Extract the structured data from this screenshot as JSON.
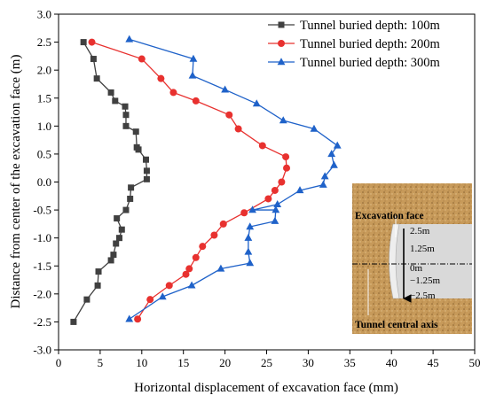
{
  "chart_data": {
    "type": "line",
    "title": "",
    "xlabel": "Horizontal displacement of excavation face (mm)",
    "ylabel": "Distance from center of the excavation face (m)",
    "xlim": [
      0,
      50
    ],
    "ylim": [
      -3.0,
      3.0
    ],
    "xticks": [
      "0",
      "5",
      "10",
      "15",
      "20",
      "25",
      "30",
      "35",
      "40",
      "45",
      "50"
    ],
    "yticks": [
      "3.0",
      "2.5",
      "2.0",
      "1.5",
      "1.0",
      "0.5",
      "0.0",
      "-0.5",
      "-1.0",
      "-1.5",
      "-2.0",
      "-2.5",
      "-3.0"
    ],
    "grid": false,
    "legend_position": "top-right",
    "series": [
      {
        "name": "Tunnel buried depth: 100m",
        "color": "#404040",
        "marker": "square",
        "points": [
          [
            3.0,
            2.5
          ],
          [
            4.2,
            2.2
          ],
          [
            4.6,
            1.85
          ],
          [
            6.3,
            1.6
          ],
          [
            6.8,
            1.45
          ],
          [
            8.0,
            1.35
          ],
          [
            8.1,
            1.2
          ],
          [
            8.1,
            1.0
          ],
          [
            9.3,
            0.9
          ],
          [
            9.4,
            0.62
          ],
          [
            9.6,
            0.58
          ],
          [
            10.5,
            0.4
          ],
          [
            10.6,
            0.2
          ],
          [
            10.6,
            0.05
          ],
          [
            8.7,
            -0.1
          ],
          [
            8.6,
            -0.3
          ],
          [
            8.1,
            -0.5
          ],
          [
            7.0,
            -0.65
          ],
          [
            7.6,
            -0.85
          ],
          [
            7.3,
            -1.0
          ],
          [
            6.9,
            -1.1
          ],
          [
            6.6,
            -1.3
          ],
          [
            6.3,
            -1.4
          ],
          [
            4.8,
            -1.6
          ],
          [
            4.7,
            -1.85
          ],
          [
            3.4,
            -2.1
          ],
          [
            1.8,
            -2.5
          ]
        ]
      },
      {
        "name": "Tunnel buried depth: 200m",
        "color": "#e8312f",
        "marker": "circle",
        "points": [
          [
            4.0,
            2.5
          ],
          [
            10.0,
            2.2
          ],
          [
            12.3,
            1.85
          ],
          [
            13.8,
            1.6
          ],
          [
            16.5,
            1.45
          ],
          [
            20.5,
            1.2
          ],
          [
            21.6,
            0.95
          ],
          [
            24.5,
            0.65
          ],
          [
            27.3,
            0.45
          ],
          [
            27.4,
            0.25
          ],
          [
            26.8,
            0.0
          ],
          [
            26.0,
            -0.15
          ],
          [
            25.2,
            -0.3
          ],
          [
            22.3,
            -0.55
          ],
          [
            19.8,
            -0.75
          ],
          [
            18.7,
            -0.95
          ],
          [
            17.3,
            -1.15
          ],
          [
            16.5,
            -1.35
          ],
          [
            15.7,
            -1.55
          ],
          [
            15.3,
            -1.65
          ],
          [
            13.3,
            -1.85
          ],
          [
            11.0,
            -2.1
          ],
          [
            9.5,
            -2.45
          ]
        ]
      },
      {
        "name": "Tunnel buried depth: 300m",
        "color": "#1f62c9",
        "marker": "triangle",
        "points": [
          [
            8.5,
            2.55
          ],
          [
            16.2,
            2.2
          ],
          [
            16.1,
            1.9
          ],
          [
            20.0,
            1.65
          ],
          [
            23.8,
            1.4
          ],
          [
            27.0,
            1.1
          ],
          [
            30.7,
            0.95
          ],
          [
            33.5,
            0.65
          ],
          [
            32.8,
            0.5
          ],
          [
            33.1,
            0.3
          ],
          [
            32.0,
            0.1
          ],
          [
            31.8,
            -0.05
          ],
          [
            29.0,
            -0.15
          ],
          [
            26.3,
            -0.4
          ],
          [
            23.3,
            -0.5
          ],
          [
            26.1,
            -0.5
          ],
          [
            26.0,
            -0.7
          ],
          [
            23.0,
            -0.8
          ],
          [
            22.8,
            -1.0
          ],
          [
            22.8,
            -1.25
          ],
          [
            23.0,
            -1.45
          ],
          [
            19.5,
            -1.55
          ],
          [
            16.0,
            -1.85
          ],
          [
            12.5,
            -2.05
          ],
          [
            8.5,
            -2.45
          ]
        ]
      }
    ],
    "annotations": [
      "Excavation face",
      "2.5m",
      "1.25m",
      "0m",
      "−1.25m",
      "−2.5m",
      "Tunnel central axis"
    ]
  }
}
